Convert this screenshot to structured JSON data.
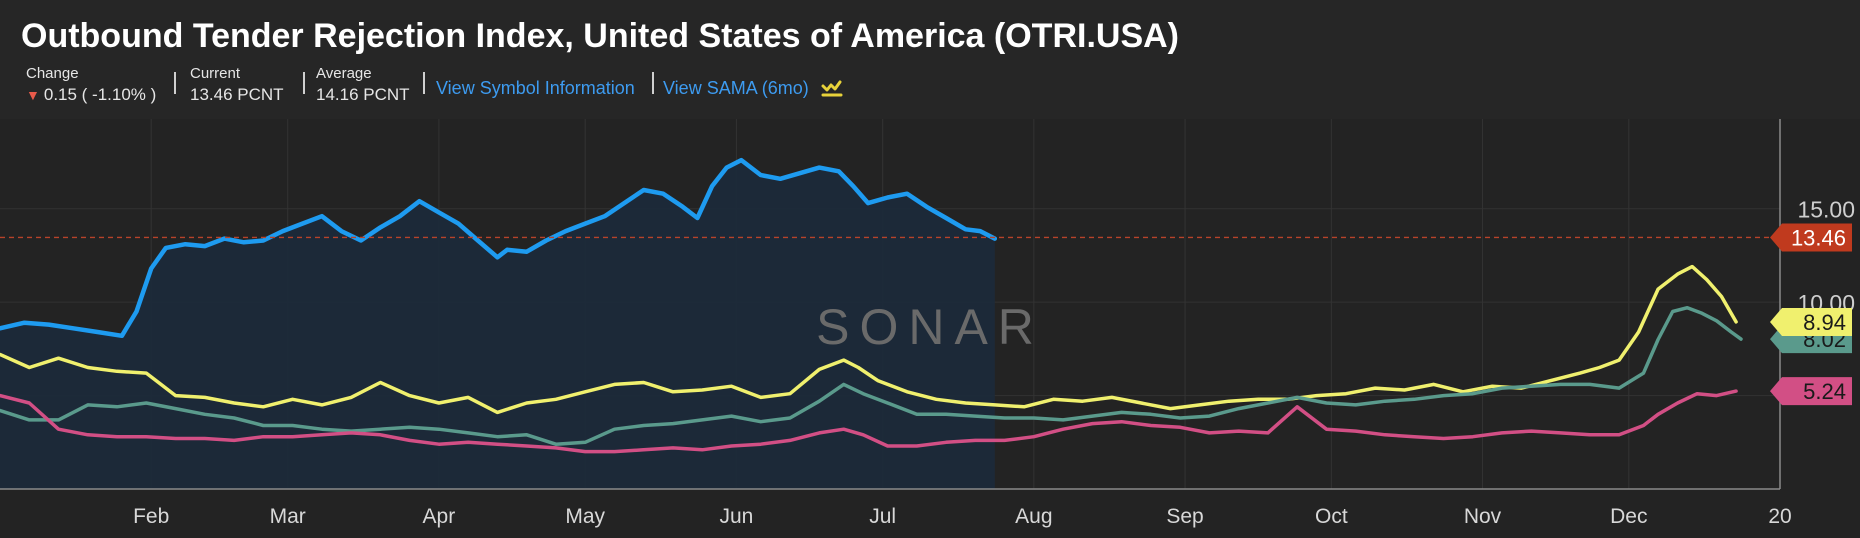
{
  "header": {
    "title": "Outbound Tender Rejection Index, United States of America (OTRI.USA)",
    "change_label": "Change",
    "change_value": "0.15 ( -1.10% )",
    "current_label": "Current",
    "current_value": "13.46 PCNT",
    "average_label": "Average",
    "average_value": "14.16 PCNT",
    "link_symbol_info": "View Symbol Information",
    "link_sama": "View SAMA (6mo)"
  },
  "watermark": "SONAR",
  "colors": {
    "background": "#232323",
    "current_year": "#1e9bf0",
    "yellow_series": "#f0f06e",
    "teal_series": "#5a9a8c",
    "pink_series": "#d24f85",
    "current_label_bg": "#c03a1e"
  },
  "chart_data": {
    "type": "line",
    "x_axis_labels": [
      "Feb",
      "Mar",
      "Apr",
      "May",
      "Jun",
      "Jul",
      "Aug",
      "Sep",
      "Oct",
      "Nov",
      "Dec",
      "20"
    ],
    "y_ticks": [
      "15.00",
      "10.00"
    ],
    "ylim": [
      0,
      19.8
    ],
    "xlim": [
      0,
      365
    ],
    "grid": true,
    "current_value_label": "13.46",
    "end_labels": [
      "8.94",
      "8.02",
      "5.24"
    ],
    "series": [
      {
        "color": "#1e9bf0",
        "fill": true,
        "points": [
          [
            0,
            8.6
          ],
          [
            5,
            8.9
          ],
          [
            10,
            8.8
          ],
          [
            15,
            8.6
          ],
          [
            20,
            8.4
          ],
          [
            25,
            8.2
          ],
          [
            28,
            9.5
          ],
          [
            31,
            11.8
          ],
          [
            34,
            12.9
          ],
          [
            38,
            13.1
          ],
          [
            42,
            13.0
          ],
          [
            46,
            13.4
          ],
          [
            50,
            13.2
          ],
          [
            54,
            13.3
          ],
          [
            58,
            13.8
          ],
          [
            62,
            14.2
          ],
          [
            66,
            14.6
          ],
          [
            70,
            13.8
          ],
          [
            74,
            13.3
          ],
          [
            78,
            14.0
          ],
          [
            82,
            14.6
          ],
          [
            86,
            15.4
          ],
          [
            90,
            14.8
          ],
          [
            94,
            14.2
          ],
          [
            98,
            13.3
          ],
          [
            102,
            12.4
          ],
          [
            104,
            12.8
          ],
          [
            108,
            12.7
          ],
          [
            112,
            13.3
          ],
          [
            116,
            13.8
          ],
          [
            120,
            14.2
          ],
          [
            124,
            14.6
          ],
          [
            128,
            15.3
          ],
          [
            132,
            16.0
          ],
          [
            136,
            15.8
          ],
          [
            140,
            15.1
          ],
          [
            143,
            14.5
          ],
          [
            146,
            16.2
          ],
          [
            149,
            17.2
          ],
          [
            152,
            17.6
          ],
          [
            156,
            16.8
          ],
          [
            160,
            16.6
          ],
          [
            164,
            16.9
          ],
          [
            168,
            17.2
          ],
          [
            172,
            17.0
          ],
          [
            175,
            16.2
          ],
          [
            178,
            15.3
          ],
          [
            182,
            15.6
          ],
          [
            186,
            15.8
          ],
          [
            190,
            15.1
          ],
          [
            194,
            14.5
          ],
          [
            198,
            13.9
          ],
          [
            201,
            13.8
          ],
          [
            204,
            13.4
          ]
        ]
      },
      {
        "color": "#f0f06e",
        "fill": false,
        "points": [
          [
            0,
            7.2
          ],
          [
            6,
            6.5
          ],
          [
            12,
            7.0
          ],
          [
            18,
            6.5
          ],
          [
            24,
            6.3
          ],
          [
            30,
            6.2
          ],
          [
            36,
            5.0
          ],
          [
            42,
            4.9
          ],
          [
            48,
            4.6
          ],
          [
            54,
            4.4
          ],
          [
            60,
            4.8
          ],
          [
            66,
            4.5
          ],
          [
            72,
            4.9
          ],
          [
            78,
            5.7
          ],
          [
            84,
            5.0
          ],
          [
            90,
            4.6
          ],
          [
            96,
            4.9
          ],
          [
            102,
            4.1
          ],
          [
            108,
            4.6
          ],
          [
            114,
            4.8
          ],
          [
            120,
            5.2
          ],
          [
            126,
            5.6
          ],
          [
            132,
            5.7
          ],
          [
            138,
            5.2
          ],
          [
            144,
            5.3
          ],
          [
            150,
            5.5
          ],
          [
            156,
            4.9
          ],
          [
            162,
            5.1
          ],
          [
            168,
            6.4
          ],
          [
            173,
            6.9
          ],
          [
            176,
            6.5
          ],
          [
            180,
            5.8
          ],
          [
            186,
            5.2
          ],
          [
            192,
            4.8
          ],
          [
            198,
            4.6
          ],
          [
            204,
            4.5
          ],
          [
            210,
            4.4
          ],
          [
            216,
            4.8
          ],
          [
            222,
            4.7
          ],
          [
            228,
            4.9
          ],
          [
            234,
            4.6
          ],
          [
            240,
            4.3
          ],
          [
            246,
            4.5
          ],
          [
            252,
            4.7
          ],
          [
            258,
            4.8
          ],
          [
            264,
            4.8
          ],
          [
            270,
            5.0
          ],
          [
            276,
            5.1
          ],
          [
            282,
            5.4
          ],
          [
            288,
            5.3
          ],
          [
            294,
            5.6
          ],
          [
            300,
            5.2
          ],
          [
            306,
            5.5
          ],
          [
            312,
            5.4
          ],
          [
            318,
            5.8
          ],
          [
            324,
            6.2
          ],
          [
            328,
            6.5
          ],
          [
            332,
            6.9
          ],
          [
            336,
            8.4
          ],
          [
            340,
            10.7
          ],
          [
            344,
            11.5
          ],
          [
            347,
            11.9
          ],
          [
            350,
            11.2
          ],
          [
            353,
            10.3
          ],
          [
            356,
            8.94
          ]
        ]
      },
      {
        "color": "#5a9a8c",
        "fill": false,
        "points": [
          [
            0,
            4.2
          ],
          [
            6,
            3.7
          ],
          [
            12,
            3.7
          ],
          [
            18,
            4.5
          ],
          [
            24,
            4.4
          ],
          [
            30,
            4.6
          ],
          [
            36,
            4.3
          ],
          [
            42,
            4.0
          ],
          [
            48,
            3.8
          ],
          [
            54,
            3.4
          ],
          [
            60,
            3.4
          ],
          [
            66,
            3.2
          ],
          [
            72,
            3.1
          ],
          [
            78,
            3.2
          ],
          [
            84,
            3.3
          ],
          [
            90,
            3.2
          ],
          [
            96,
            3.0
          ],
          [
            102,
            2.8
          ],
          [
            108,
            2.9
          ],
          [
            114,
            2.4
          ],
          [
            120,
            2.5
          ],
          [
            126,
            3.2
          ],
          [
            132,
            3.4
          ],
          [
            138,
            3.5
          ],
          [
            144,
            3.7
          ],
          [
            150,
            3.9
          ],
          [
            156,
            3.6
          ],
          [
            162,
            3.8
          ],
          [
            168,
            4.7
          ],
          [
            173,
            5.6
          ],
          [
            177,
            5.1
          ],
          [
            182,
            4.6
          ],
          [
            188,
            4.0
          ],
          [
            194,
            4.0
          ],
          [
            200,
            3.9
          ],
          [
            206,
            3.8
          ],
          [
            212,
            3.8
          ],
          [
            218,
            3.7
          ],
          [
            224,
            3.9
          ],
          [
            230,
            4.1
          ],
          [
            236,
            4.0
          ],
          [
            242,
            3.8
          ],
          [
            248,
            3.9
          ],
          [
            254,
            4.3
          ],
          [
            260,
            4.6
          ],
          [
            266,
            4.9
          ],
          [
            272,
            4.6
          ],
          [
            278,
            4.5
          ],
          [
            284,
            4.7
          ],
          [
            290,
            4.8
          ],
          [
            296,
            5.0
          ],
          [
            302,
            5.1
          ],
          [
            308,
            5.4
          ],
          [
            314,
            5.5
          ],
          [
            320,
            5.6
          ],
          [
            326,
            5.6
          ],
          [
            332,
            5.4
          ],
          [
            337,
            6.2
          ],
          [
            340,
            8.0
          ],
          [
            343,
            9.5
          ],
          [
            346,
            9.7
          ],
          [
            349,
            9.4
          ],
          [
            352,
            9.0
          ],
          [
            355,
            8.4
          ],
          [
            357,
            8.02
          ]
        ]
      },
      {
        "color": "#d24f85",
        "fill": false,
        "points": [
          [
            0,
            5.0
          ],
          [
            6,
            4.6
          ],
          [
            12,
            3.2
          ],
          [
            18,
            2.9
          ],
          [
            24,
            2.8
          ],
          [
            30,
            2.8
          ],
          [
            36,
            2.7
          ],
          [
            42,
            2.7
          ],
          [
            48,
            2.6
          ],
          [
            54,
            2.8
          ],
          [
            60,
            2.8
          ],
          [
            66,
            2.9
          ],
          [
            72,
            3.0
          ],
          [
            78,
            2.9
          ],
          [
            84,
            2.6
          ],
          [
            90,
            2.4
          ],
          [
            96,
            2.5
          ],
          [
            102,
            2.4
          ],
          [
            108,
            2.3
          ],
          [
            114,
            2.2
          ],
          [
            120,
            2.0
          ],
          [
            126,
            2.0
          ],
          [
            132,
            2.1
          ],
          [
            138,
            2.2
          ],
          [
            144,
            2.1
          ],
          [
            150,
            2.3
          ],
          [
            156,
            2.4
          ],
          [
            162,
            2.6
          ],
          [
            168,
            3.0
          ],
          [
            173,
            3.2
          ],
          [
            177,
            2.9
          ],
          [
            182,
            2.3
          ],
          [
            188,
            2.3
          ],
          [
            194,
            2.5
          ],
          [
            200,
            2.6
          ],
          [
            206,
            2.6
          ],
          [
            212,
            2.8
          ],
          [
            218,
            3.2
          ],
          [
            224,
            3.5
          ],
          [
            230,
            3.6
          ],
          [
            236,
            3.4
          ],
          [
            242,
            3.3
          ],
          [
            248,
            3.0
          ],
          [
            254,
            3.1
          ],
          [
            260,
            3.0
          ],
          [
            266,
            4.4
          ],
          [
            272,
            3.2
          ],
          [
            278,
            3.1
          ],
          [
            284,
            2.9
          ],
          [
            290,
            2.8
          ],
          [
            296,
            2.7
          ],
          [
            302,
            2.8
          ],
          [
            308,
            3.0
          ],
          [
            314,
            3.1
          ],
          [
            320,
            3.0
          ],
          [
            326,
            2.9
          ],
          [
            332,
            2.9
          ],
          [
            337,
            3.4
          ],
          [
            340,
            4.0
          ],
          [
            344,
            4.6
          ],
          [
            348,
            5.1
          ],
          [
            352,
            5.0
          ],
          [
            356,
            5.24
          ]
        ]
      }
    ]
  }
}
